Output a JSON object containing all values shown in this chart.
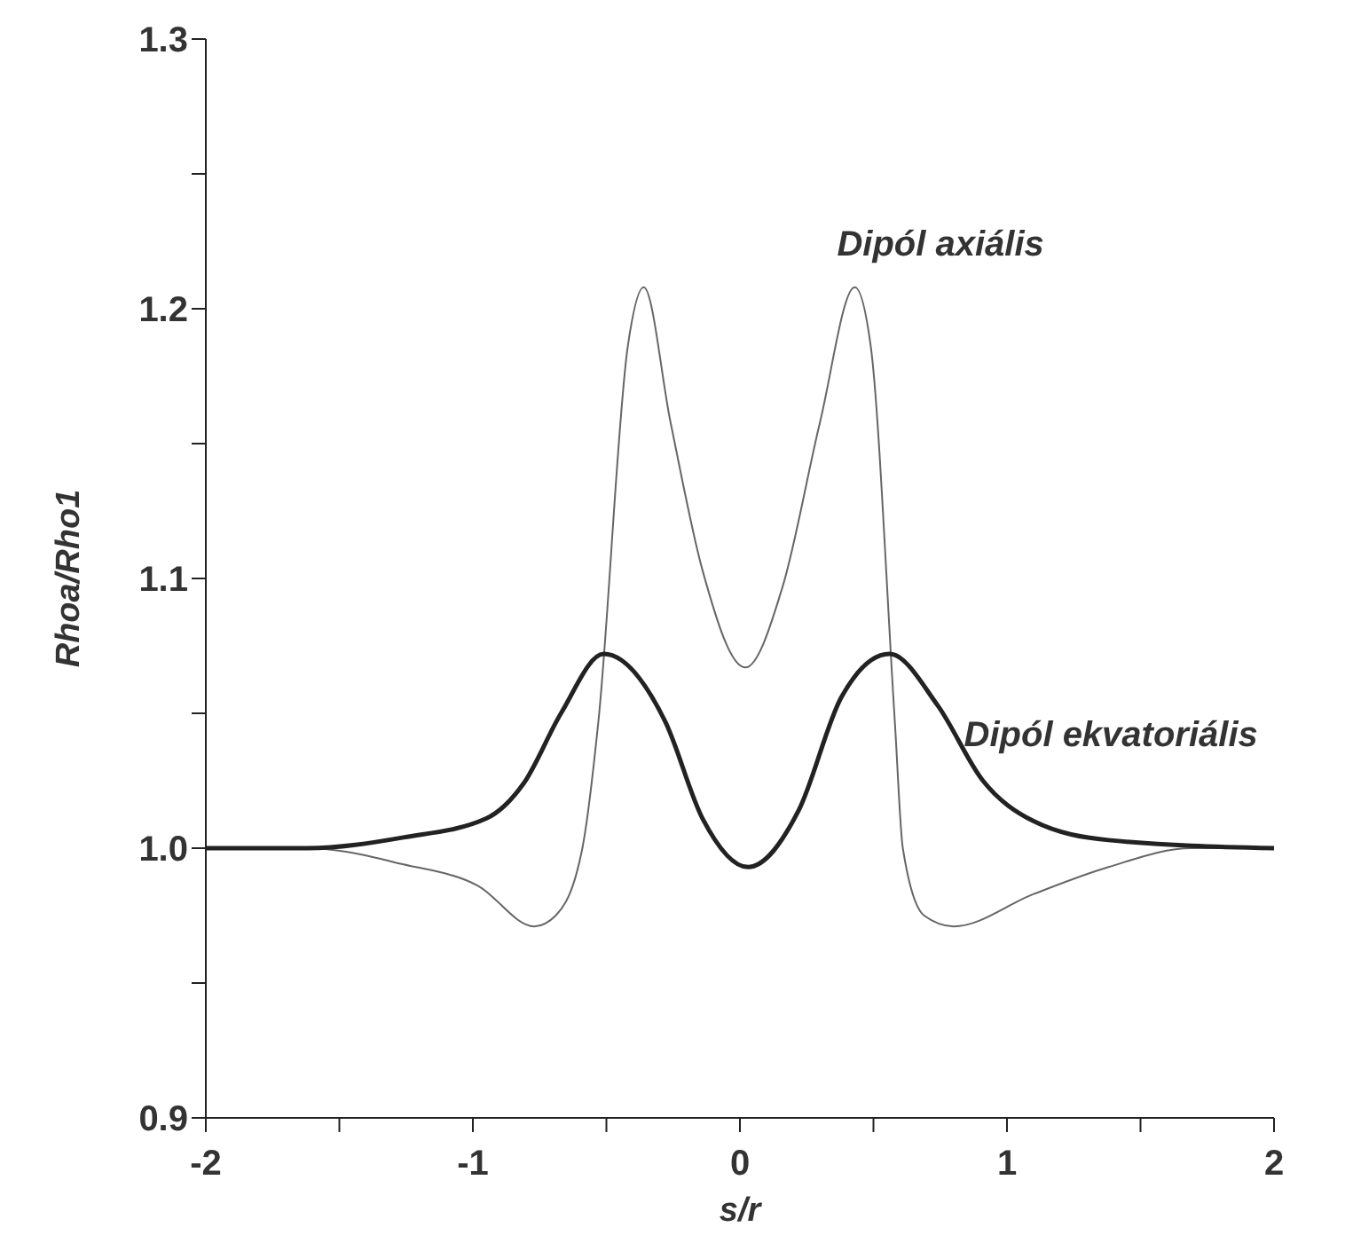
{
  "chart_data": {
    "type": "line",
    "xlabel": "s/r",
    "ylabel": "Rhoa/Rho1",
    "xlim": [
      -2,
      2
    ],
    "ylim": [
      0.9,
      1.3
    ],
    "xticks": [
      -2,
      {
        "value": -1.5,
        "label": null
      },
      -1,
      {
        "value": -0.5,
        "label": null
      },
      0,
      {
        "value": 0.5,
        "label": null
      },
      1,
      {
        "value": 1.5,
        "label": null
      },
      2
    ],
    "yticks": [
      0.9,
      {
        "value": 0.95,
        "label": null
      },
      {
        "value": 1.0,
        "label": "1.0"
      },
      {
        "value": 1.05,
        "label": null
      },
      1.1,
      {
        "value": 1.15,
        "label": null
      },
      1.2,
      {
        "value": 1.25,
        "label": null
      },
      1.3
    ],
    "marker": "none",
    "line_style": "solid",
    "series": [
      {
        "name": "Dipól axiális",
        "color": "#666666",
        "x": [
          -2,
          -1.62,
          -1.26,
          -0.98,
          -0.77,
          -0.69,
          -0.59,
          -0.53,
          -0.42,
          -0.36,
          -0.26,
          -0.14,
          0.02,
          0.16,
          0.3,
          0.43,
          0.49,
          0.58,
          0.61,
          0.69,
          0.8,
          1.1,
          1.38,
          1.69,
          2
        ],
        "values": [
          1.0,
          1.0,
          0.994,
          0.986,
          0.971,
          0.975,
          1.0,
          1.047,
          1.186,
          1.208,
          1.158,
          1.103,
          1.067,
          1.097,
          1.158,
          1.208,
          1.186,
          1.047,
          1.0,
          0.975,
          0.971,
          0.983,
          0.993,
          1.0,
          1.0
        ]
      },
      {
        "name": "Dipól ekvatoriális",
        "color": "#222222",
        "x": [
          -2,
          -1.62,
          -1.26,
          -0.95,
          -0.81,
          -0.67,
          -0.51,
          -0.28,
          -0.14,
          0.03,
          0.22,
          0.38,
          0.56,
          0.74,
          0.91,
          1.1,
          1.38,
          2
        ],
        "values": [
          1.0,
          1.0,
          1.004,
          1.011,
          1.024,
          1.05,
          1.072,
          1.047,
          1.011,
          0.993,
          1.014,
          1.056,
          1.072,
          1.053,
          1.025,
          1.01,
          1.003,
          1.0
        ]
      }
    ]
  }
}
